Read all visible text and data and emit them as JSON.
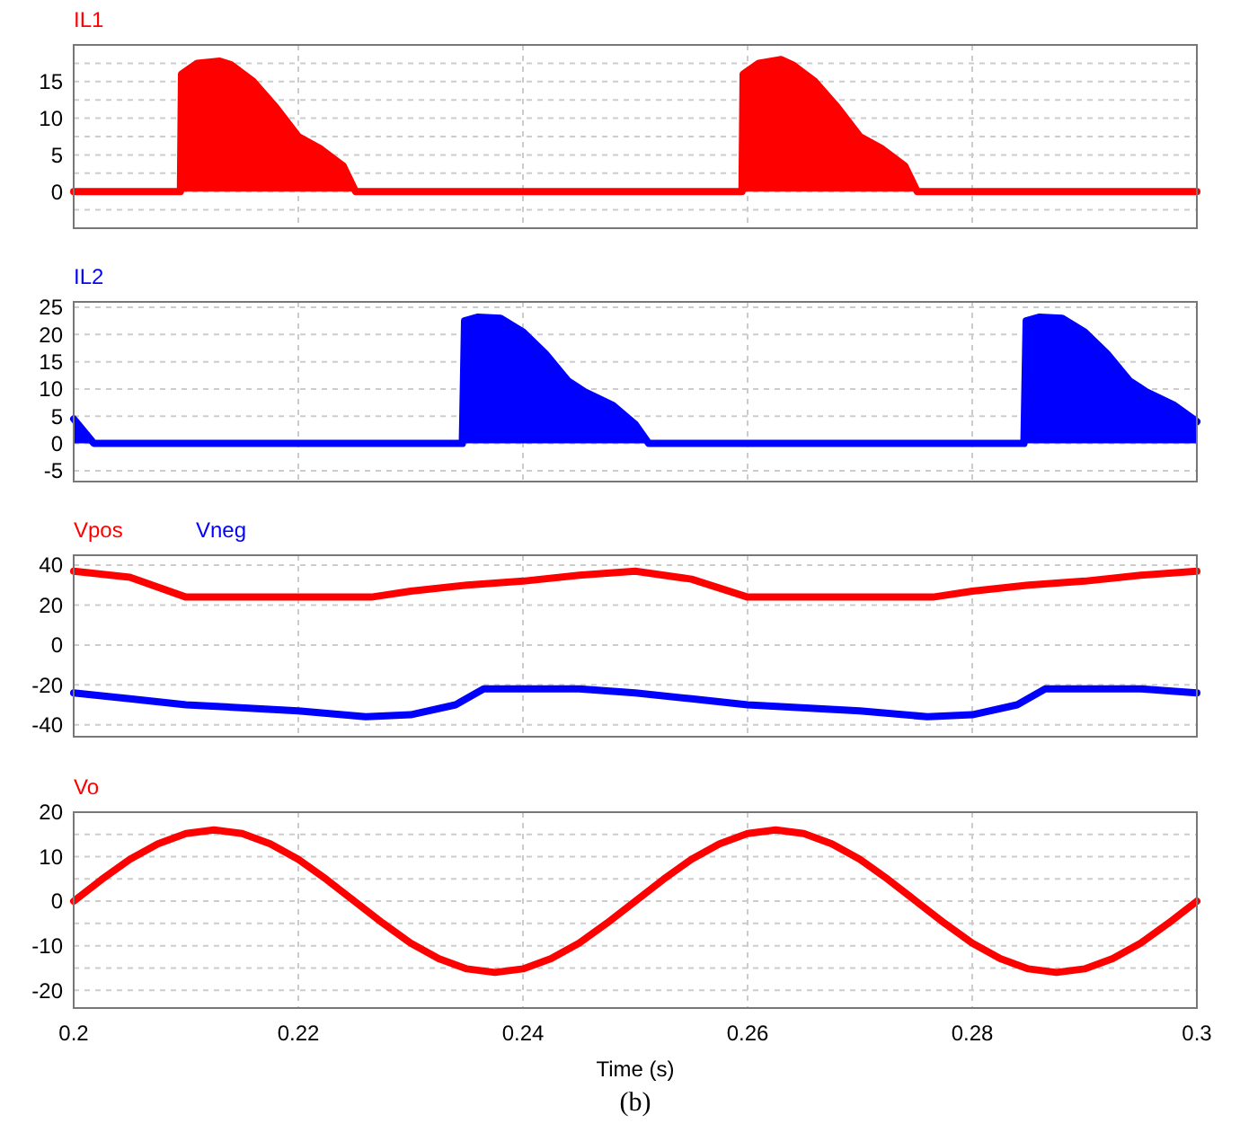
{
  "chart_data": [
    {
      "type": "area",
      "legend": "top left",
      "grid": true,
      "tick_labels": "y",
      "xlim": [
        0.2,
        0.3
      ],
      "xticks": [
        0.2,
        0.22,
        0.24,
        0.26,
        0.28,
        0.3
      ],
      "ylim": [
        -5,
        20
      ],
      "yticks": [
        {
          "value": -2.5,
          "label": null
        },
        0,
        {
          "value": 2.5,
          "label": null
        },
        5,
        {
          "value": 7.5,
          "label": null
        },
        10,
        {
          "value": 12.5,
          "label": null
        },
        15,
        {
          "value": 17.5,
          "label": null
        }
      ],
      "series": [
        {
          "name": "IL1",
          "color": "#ff0000",
          "x": [
            0.2,
            0.2095,
            0.2096,
            0.211,
            0.213,
            0.214,
            0.216,
            0.218,
            0.22,
            0.222,
            0.224,
            0.2251,
            0.2595,
            0.2596,
            0.261,
            0.263,
            0.264,
            0.266,
            0.268,
            0.27,
            0.272,
            0.274,
            0.2751,
            0.3
          ],
          "values": [
            0,
            0,
            16,
            17.5,
            17.8,
            17.3,
            15,
            11.5,
            7.5,
            5.8,
            3.5,
            0,
            0,
            16,
            17.5,
            18,
            17.3,
            15,
            11.5,
            7.5,
            5.8,
            3.5,
            0,
            0
          ]
        }
      ]
    },
    {
      "type": "area",
      "legend": "top left",
      "grid": true,
      "tick_labels": "y",
      "xlim": [
        0.2,
        0.3
      ],
      "xticks": [
        0.2,
        0.22,
        0.24,
        0.26,
        0.28,
        0.3
      ],
      "ylim": [
        -7,
        26
      ],
      "yticks": [
        -5,
        0,
        5,
        10,
        15,
        20,
        25
      ],
      "series": [
        {
          "name": "IL2",
          "color": "#0000ff",
          "x": [
            0.2,
            0.2018,
            0.2346,
            0.2348,
            0.236,
            0.238,
            0.24,
            0.242,
            0.244,
            0.2455,
            0.248,
            0.25,
            0.2512,
            0.2846,
            0.2848,
            0.286,
            0.288,
            0.29,
            0.292,
            0.294,
            0.2955,
            0.298,
            0.3
          ],
          "values": [
            4.5,
            0,
            0,
            22.5,
            23.2,
            23,
            20.5,
            16.5,
            11.5,
            9.5,
            7,
            3.5,
            0,
            0,
            22.5,
            23.2,
            23,
            20.5,
            16.5,
            11.5,
            9.5,
            7,
            4
          ]
        }
      ]
    },
    {
      "type": "line",
      "legend": "top left",
      "grid": true,
      "tick_labels": "y",
      "xlim": [
        0.2,
        0.3
      ],
      "xticks": [
        0.2,
        0.22,
        0.24,
        0.26,
        0.28,
        0.3
      ],
      "ylim": [
        -46,
        45
      ],
      "yticks": [
        -40,
        -20,
        0,
        20,
        40
      ],
      "series": [
        {
          "name": "Vpos",
          "color": "#ff0000",
          "x": [
            0.2,
            0.205,
            0.21,
            0.2265,
            0.23,
            0.235,
            0.24,
            0.245,
            0.25,
            0.255,
            0.26,
            0.2765,
            0.28,
            0.285,
            0.29,
            0.295,
            0.3
          ],
          "values": [
            37,
            34,
            24,
            24,
            27,
            30,
            32,
            35,
            37,
            33,
            24,
            24,
            27,
            30,
            32,
            35,
            37
          ]
        },
        {
          "name": "Vneg",
          "color": "#0000ff",
          "x": [
            0.2,
            0.205,
            0.21,
            0.22,
            0.226,
            0.23,
            0.234,
            0.2365,
            0.245,
            0.25,
            0.255,
            0.26,
            0.27,
            0.276,
            0.28,
            0.284,
            0.2865,
            0.295,
            0.3
          ],
          "values": [
            -24,
            -27,
            -30,
            -33,
            -36,
            -35,
            -30,
            -22,
            -22,
            -24,
            -27,
            -30,
            -33,
            -36,
            -35,
            -30,
            -22,
            -22,
            -24
          ]
        }
      ]
    },
    {
      "type": "line",
      "legend": "top left",
      "grid": true,
      "xlabel": "Time (s)",
      "annotations": [
        "(b)"
      ],
      "xlim": [
        0.2,
        0.3
      ],
      "xticks": [
        0.2,
        0.22,
        0.24,
        0.26,
        0.28,
        0.3
      ],
      "ylim": [
        -24,
        20
      ],
      "yticks": [
        -20,
        {
          "value": -15,
          "label": null
        },
        -10,
        {
          "value": -5,
          "label": null
        },
        0,
        {
          "value": 5,
          "label": null
        },
        10,
        {
          "value": 15,
          "label": null
        },
        20
      ],
      "series": [
        {
          "name": "Vo",
          "color": "#ff0000",
          "x": [
            0.2,
            0.2025,
            0.205,
            0.2075,
            0.21,
            0.2125,
            0.215,
            0.2175,
            0.22,
            0.2225,
            0.225,
            0.2275,
            0.23,
            0.2325,
            0.235,
            0.2375,
            0.24,
            0.2425,
            0.245,
            0.2475,
            0.25,
            0.2525,
            0.255,
            0.2575,
            0.26,
            0.2625,
            0.265,
            0.2675,
            0.27,
            0.2725,
            0.275,
            0.2775,
            0.28,
            0.2825,
            0.285,
            0.2875,
            0.29,
            0.2925,
            0.295,
            0.2975,
            0.3
          ],
          "values": [
            0,
            4.9,
            9.4,
            12.9,
            15.2,
            16,
            15.2,
            12.9,
            9.4,
            4.9,
            0,
            -4.9,
            -9.4,
            -12.9,
            -15.2,
            -16,
            -15.2,
            -12.9,
            -9.4,
            -4.9,
            0,
            4.9,
            9.4,
            12.9,
            15.2,
            16,
            15.2,
            12.9,
            9.4,
            4.9,
            0,
            -4.9,
            -9.4,
            -12.9,
            -15.2,
            -16,
            -15.2,
            -12.9,
            -9.4,
            -4.9,
            0
          ]
        }
      ]
    }
  ]
}
